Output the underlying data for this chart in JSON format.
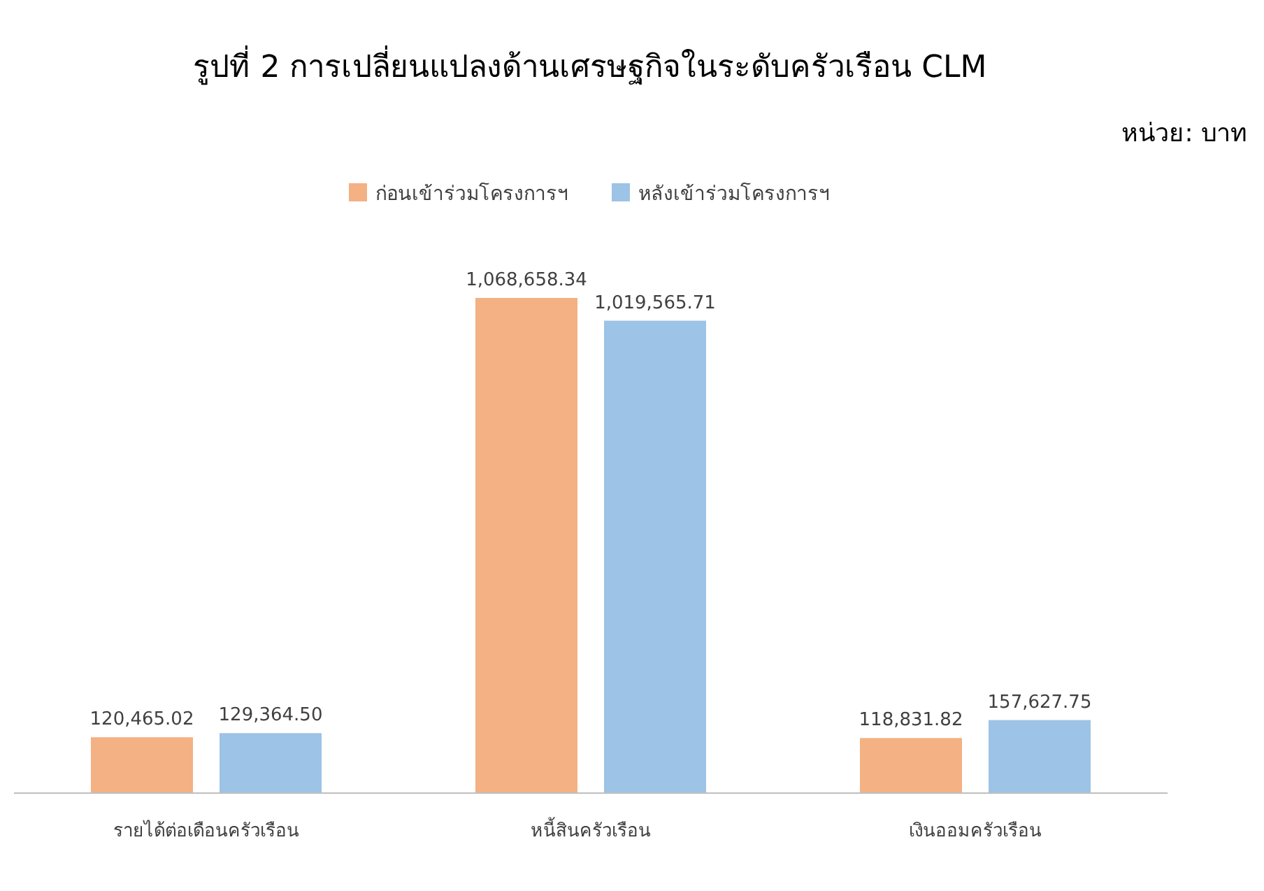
{
  "chart_data": {
    "type": "bar",
    "title": "รูปที่ 2 การเปลี่ยนแปลงด้านเศรษฐกิจในระดับครัวเรือน CLM",
    "annotations": [
      "หน่วย: บาท"
    ],
    "categories": [
      "รายได้ต่อเดือนครัวเรือน",
      "หนี้สินครัวเรือน",
      "เงินออมครัวเรือน"
    ],
    "legend": "top",
    "series": [
      {
        "name": "ก่อนเข้าร่วมโครงการฯ",
        "color": "#f4b183",
        "values": [
          120465.02,
          1068658.34,
          118831.82
        ],
        "value_labels": [
          "120,465.02",
          "1,068,658.34",
          "118,831.82"
        ]
      },
      {
        "name": "หลังเข้าร่วมโครงการฯ",
        "color": "#9dc3e6",
        "values": [
          129364.5,
          1019565.71,
          157627.75
        ],
        "value_labels": [
          "129,364.50",
          "1,019,565.71",
          "157,627.75"
        ]
      }
    ]
  }
}
